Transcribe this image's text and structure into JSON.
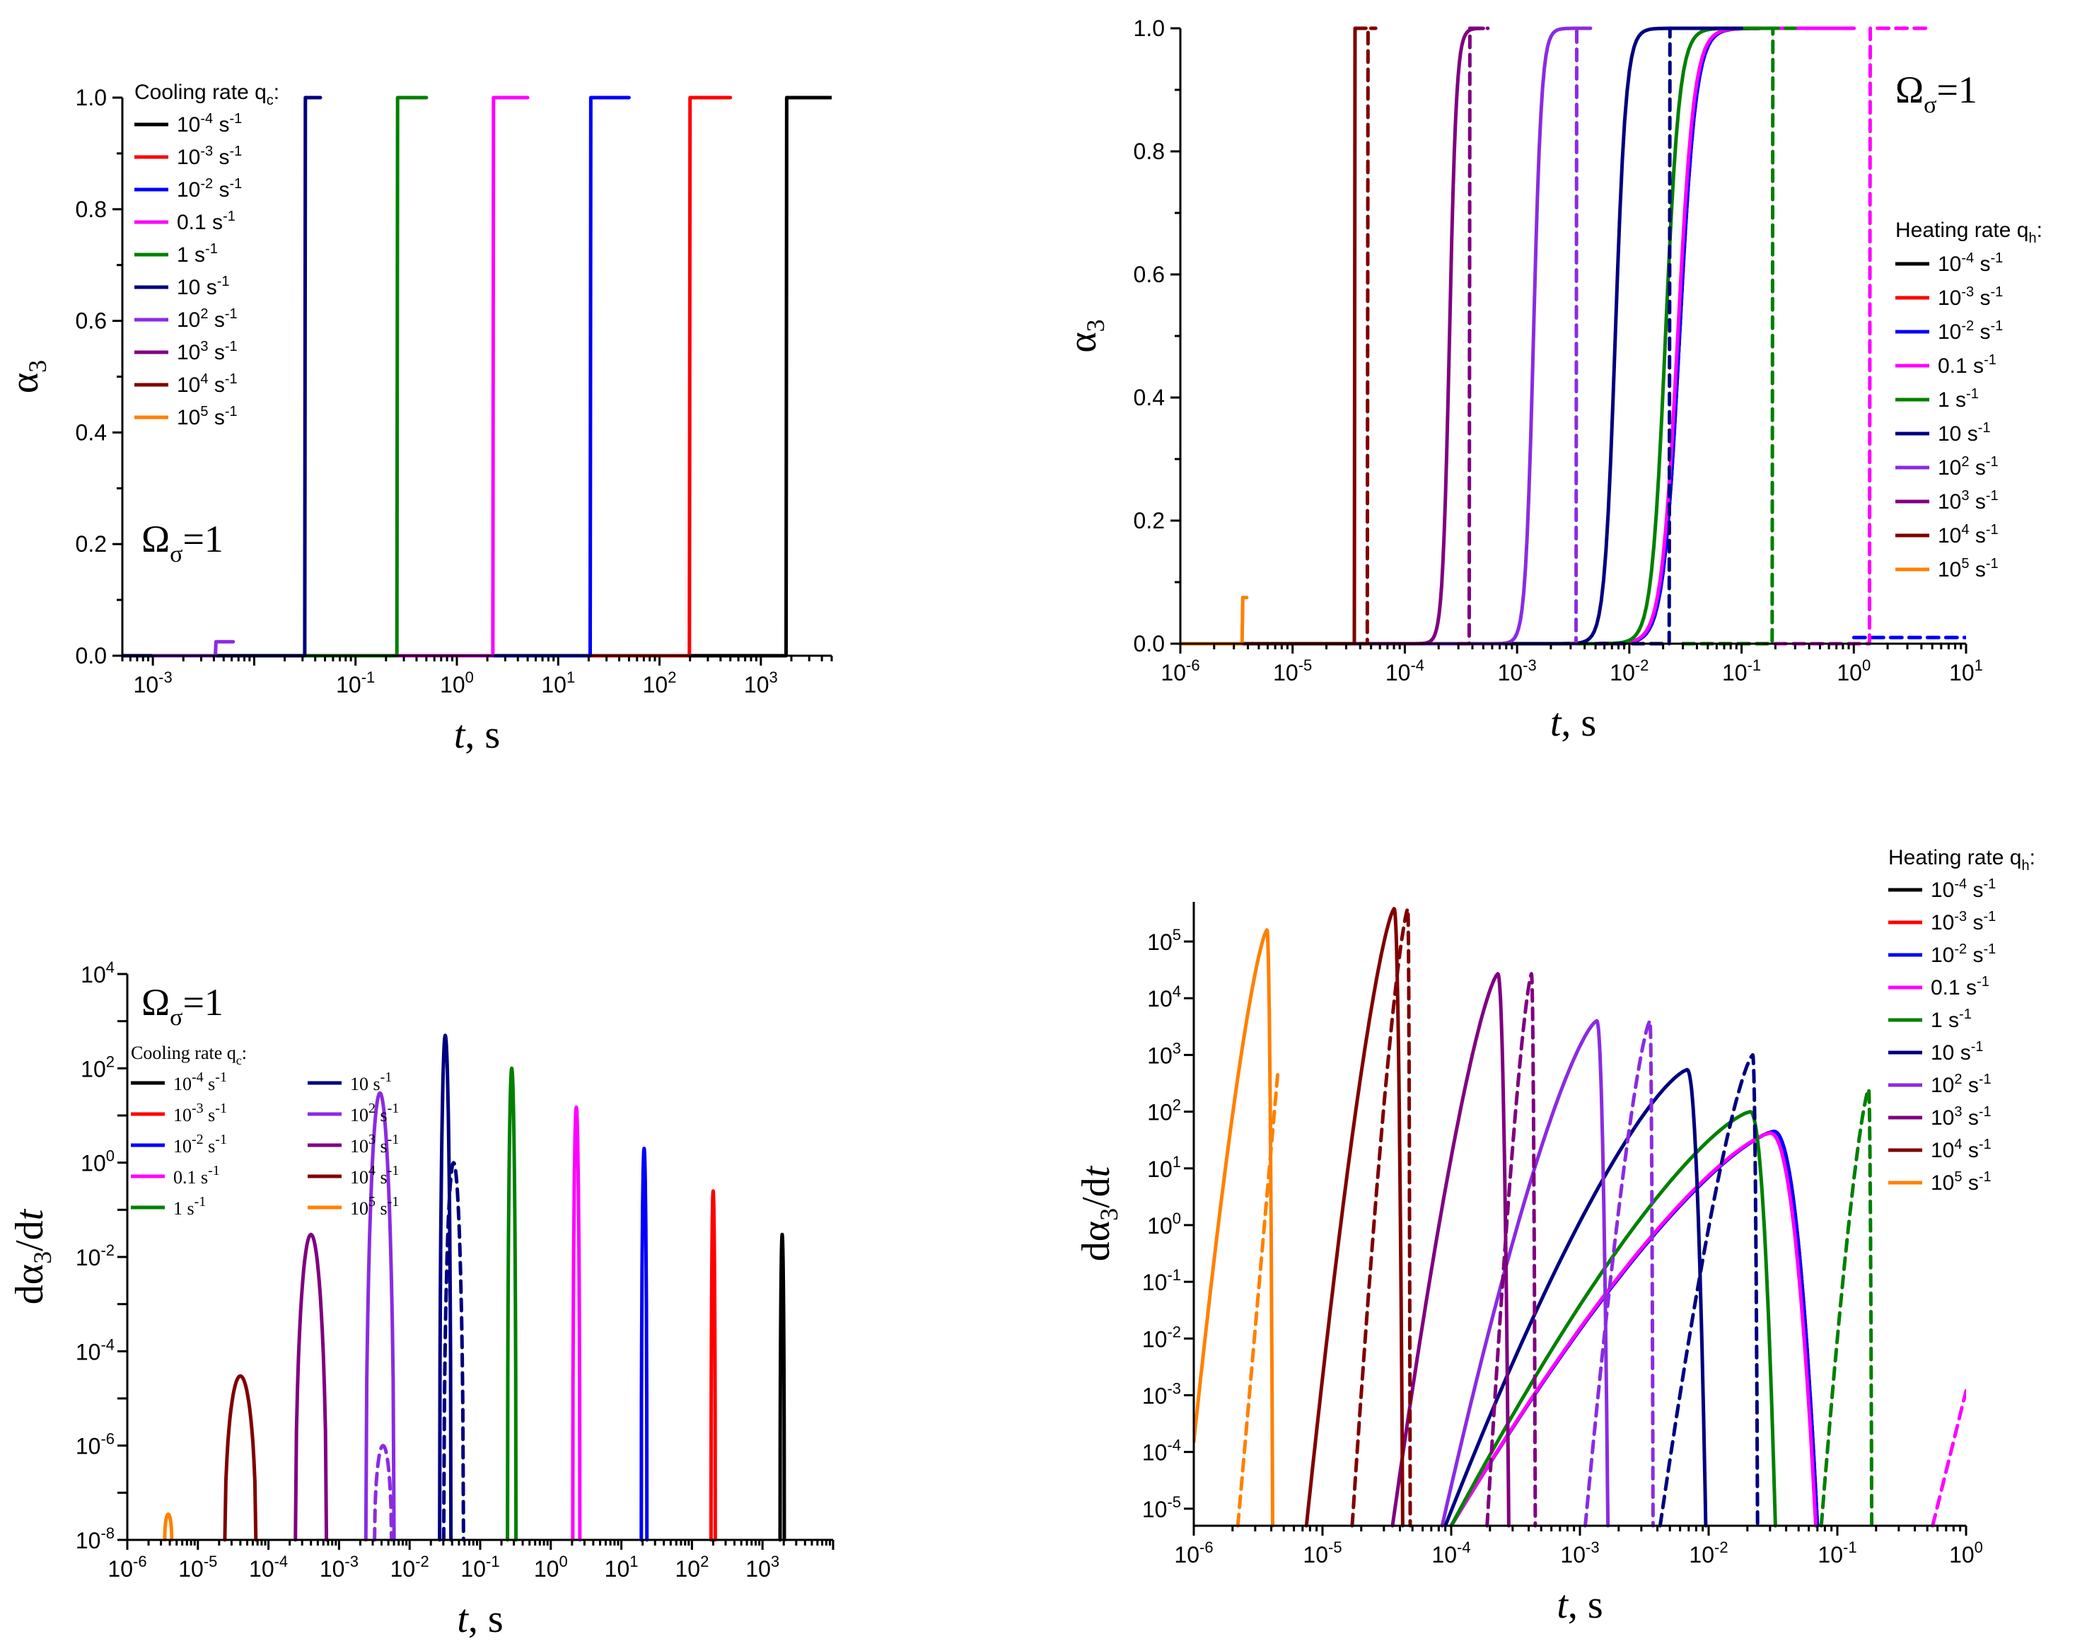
{
  "colors": {
    "1e-4": "#000000",
    "1e-3": "#ff0000",
    "1e-2": "#0000ff",
    "0.1": "#ff00ff",
    "1": "#008000",
    "10": "#000080",
    "1e2": "#8a2be2",
    "1e3": "#800080",
    "1e4": "#800000",
    "1e5": "#ff8000"
  },
  "rate_labels": [
    {
      "key": "1e-4",
      "base": "10",
      "exp": "-4",
      "unit": " s",
      "uexp": "-1"
    },
    {
      "key": "1e-3",
      "base": "10",
      "exp": "-3",
      "unit": " s",
      "uexp": "-1"
    },
    {
      "key": "1e-2",
      "base": "10",
      "exp": "-2",
      "unit": " s",
      "uexp": "-1"
    },
    {
      "key": "0.1",
      "base": "0.1",
      "exp": "",
      "unit": " s",
      "uexp": "-1"
    },
    {
      "key": "1",
      "base": "1",
      "exp": "",
      "unit": " s",
      "uexp": "-1"
    },
    {
      "key": "10",
      "base": "10",
      "exp": "",
      "unit": " s",
      "uexp": "-1"
    },
    {
      "key": "1e2",
      "base": "10",
      "exp": "2",
      "unit": " s",
      "uexp": "-1"
    },
    {
      "key": "1e3",
      "base": "10",
      "exp": "3",
      "unit": " s",
      "uexp": "-1"
    },
    {
      "key": "1e4",
      "base": "10",
      "exp": "4",
      "unit": " s",
      "uexp": "-1"
    },
    {
      "key": "1e5",
      "base": "10",
      "exp": "5",
      "unit": " s",
      "uexp": "-1"
    }
  ],
  "chart_data": [
    {
      "id": "top-left",
      "type": "line",
      "xscale": "log",
      "yscale": "linear",
      "xlim": [
        0.0005,
        5000
      ],
      "ylim": [
        0,
        1.0
      ],
      "xlabel": "t, s",
      "ylabel": "α3",
      "xticks": [
        {
          "v": 0.001,
          "b": "10",
          "e": "-3"
        },
        {
          "v": 0.1,
          "b": "10",
          "e": "-1"
        },
        {
          "v": 1,
          "b": "10",
          "e": "0"
        },
        {
          "v": 10,
          "b": "10",
          "e": "1"
        },
        {
          "v": 100,
          "b": "10",
          "e": "2"
        },
        {
          "v": 1000,
          "b": "10",
          "e": "3"
        }
      ],
      "xticks_unlabeled": [
        0.01
      ],
      "yticks": [
        "0.0",
        "0.2",
        "0.4",
        "0.6",
        "0.8",
        "1.0"
      ],
      "annotation": {
        "text": "Ω",
        "sub": "σ",
        "rest": "=1"
      },
      "legend": {
        "title": "Cooling rate q",
        "title_sub": "c",
        "title_end": ":",
        "position": "top-left"
      },
      "series": [
        {
          "key": "1e-4",
          "solid": {
            "kind": "step",
            "x0": 0.0005,
            "xs": 1800,
            "x1": 5000,
            "hi": 1
          }
        },
        {
          "key": "1e-3",
          "solid": {
            "kind": "step",
            "x0": 0.04,
            "xs": 200,
            "x1": 500,
            "hi": 1
          }
        },
        {
          "key": "1e-2",
          "solid": {
            "kind": "step",
            "x0": 0.02,
            "xs": 21,
            "x1": 50,
            "hi": 1
          }
        },
        {
          "key": "0.1",
          "solid": {
            "kind": "step",
            "x0": 0.2,
            "xs": 2.3,
            "x1": 5,
            "hi": 1
          }
        },
        {
          "key": "1",
          "solid": {
            "kind": "step",
            "x0": 0.0005,
            "xs": 0.26,
            "x1": 0.5,
            "hi": 1
          }
        },
        {
          "key": "10",
          "solid": {
            "kind": "step",
            "x0": 0.0005,
            "xs": 0.032,
            "x1": 0.045,
            "hi": 1
          }
        },
        {
          "key": "1e2",
          "solid": {
            "kind": "step",
            "x0": 0.001,
            "xs": 0.0042,
            "x1": 0.0062,
            "hi": 0.025
          }
        }
      ]
    },
    {
      "id": "top-right",
      "type": "line",
      "xscale": "log",
      "yscale": "linear",
      "xlim": [
        1e-06,
        10
      ],
      "ylim": [
        0,
        1.0
      ],
      "xlabel": "t, s",
      "ylabel": "α3",
      "xticks": [
        {
          "v": 1e-06,
          "b": "10",
          "e": "-6"
        },
        {
          "v": 1e-05,
          "b": "10",
          "e": "-5"
        },
        {
          "v": 0.0001,
          "b": "10",
          "e": "-4"
        },
        {
          "v": 0.001,
          "b": "10",
          "e": "-3"
        },
        {
          "v": 0.01,
          "b": "10",
          "e": "-2"
        },
        {
          "v": 0.1,
          "b": "10",
          "e": "-1"
        },
        {
          "v": 1,
          "b": "10",
          "e": "0"
        },
        {
          "v": 10,
          "b": "10",
          "e": "1"
        }
      ],
      "yticks": [
        "0.0",
        "0.2",
        "0.4",
        "0.6",
        "0.8",
        "1.0"
      ],
      "annotation": {
        "text": "Ω",
        "sub": "σ",
        "rest": "=1"
      },
      "legend": {
        "title": "Heating rate q",
        "title_sub": "h",
        "title_end": ":",
        "position": "right"
      },
      "series": [
        {
          "key": "1e-4",
          "solid": {
            "kind": "sig",
            "xm": 0.028,
            "k": 6,
            "x1": 1
          }
        },
        {
          "key": "1e-3",
          "solid": {
            "kind": "sig",
            "xm": 0.028,
            "k": 6,
            "x1": 1
          },
          "dash": {
            "kind": "const",
            "x0": 0.1,
            "x1": 1,
            "v": 1
          }
        },
        {
          "key": "1e-2",
          "solid": {
            "kind": "sig",
            "xm": 0.028,
            "k": 6,
            "x1": 1
          },
          "dash": {
            "kind": "const",
            "x0": 1,
            "x1": 10,
            "v": 0.01
          }
        },
        {
          "key": "0.1",
          "solid": {
            "kind": "sig",
            "xm": 0.027,
            "k": 6,
            "x1": 1
          },
          "dash": {
            "kind": "step",
            "x0": 0.03,
            "xs": 1.4,
            "x1": 5,
            "hi": 1
          }
        },
        {
          "key": "1",
          "solid": {
            "kind": "sig",
            "xm": 0.021,
            "k": 7,
            "x1": 0.2
          },
          "dash": {
            "kind": "step",
            "x0": 0.03,
            "xs": 0.19,
            "x1": 0.3,
            "hi": 1
          }
        },
        {
          "key": "10",
          "solid": {
            "kind": "sig",
            "xm": 0.0075,
            "k": 9,
            "x1": 0.1
          },
          "dash": {
            "kind": "step",
            "x0": 0.005,
            "xs": 0.023,
            "x1": 0.03,
            "hi": 1
          }
        },
        {
          "key": "1e2",
          "solid": {
            "kind": "sig",
            "xm": 0.0014,
            "k": 12,
            "x1": 0.0045
          },
          "dash": {
            "kind": "step",
            "x0": 0.003,
            "xs": 0.0034,
            "x1": 0.0045,
            "hi": 1
          }
        },
        {
          "key": "1e3",
          "solid": {
            "kind": "sig",
            "xm": 0.00025,
            "k": 14,
            "x1": 0.0005
          },
          "dash": {
            "kind": "step",
            "x0": 0.0003,
            "xs": 0.00038,
            "x1": 0.00055,
            "hi": 1
          }
        },
        {
          "key": "1e4",
          "solid": {
            "kind": "step",
            "x0": 1e-06,
            "xs": 3.6e-05,
            "x1": 4.5e-05,
            "hi": 1
          },
          "dash": {
            "kind": "step",
            "x0": 4e-05,
            "xs": 4.7e-05,
            "x1": 5.5e-05,
            "hi": 1
          }
        },
        {
          "key": "1e5",
          "solid": {
            "kind": "step",
            "x0": 1e-06,
            "xs": 3.6e-06,
            "x1": 3.9e-06,
            "hi": 0.075
          }
        }
      ]
    },
    {
      "id": "bottom-left",
      "type": "line",
      "xscale": "log",
      "yscale": "log",
      "xlim": [
        1e-06,
        10000
      ],
      "ylim": [
        1e-08,
        10000.0
      ],
      "xlabel": "t, s",
      "ylabel": "dα3/dt",
      "xticks": [
        {
          "v": 1e-06,
          "b": "10",
          "e": "-6"
        },
        {
          "v": 1e-05,
          "b": "10",
          "e": "-5"
        },
        {
          "v": 0.0001,
          "b": "10",
          "e": "-4"
        },
        {
          "v": 0.001,
          "b": "10",
          "e": "-3"
        },
        {
          "v": 0.01,
          "b": "10",
          "e": "-2"
        },
        {
          "v": 0.1,
          "b": "10",
          "e": "-1"
        },
        {
          "v": 1,
          "b": "10",
          "e": "0"
        },
        {
          "v": 10,
          "b": "10",
          "e": "1"
        },
        {
          "v": 100,
          "b": "10",
          "e": "2"
        },
        {
          "v": 1000,
          "b": "10",
          "e": "3"
        }
      ],
      "yticks": [
        {
          "v": 1e-08,
          "b": "10",
          "e": "-8"
        },
        {
          "v": 1e-06,
          "b": "10",
          "e": "-6"
        },
        {
          "v": 0.0001,
          "b": "10",
          "e": "-4"
        },
        {
          "v": 0.01,
          "b": "10",
          "e": "-2"
        },
        {
          "v": 1,
          "b": "10",
          "e": "0"
        },
        {
          "v": 100,
          "b": "10",
          "e": "2"
        },
        {
          "v": 10000,
          "b": "10",
          "e": "4"
        }
      ],
      "annotation": {
        "text": "Ω",
        "sub": "σ",
        "rest": "=1"
      },
      "legend": {
        "title": "Cooling rate q",
        "title_sub": "c",
        "title_end": ":",
        "position": "top-left",
        "columns": 2
      },
      "series": [
        {
          "key": "1e-4",
          "solid": {
            "kind": "spike",
            "xc": 1900,
            "w": 0.03,
            "peak": 0.03
          }
        },
        {
          "key": "1e-3",
          "solid": {
            "kind": "spike",
            "xc": 200,
            "w": 0.03,
            "peak": 0.25
          }
        },
        {
          "key": "1e-2",
          "solid": {
            "kind": "spike",
            "xc": 21,
            "w": 0.04,
            "peak": 2
          }
        },
        {
          "key": "0.1",
          "solid": {
            "kind": "spike",
            "xc": 2.3,
            "w": 0.05,
            "peak": 15
          }
        },
        {
          "key": "1",
          "solid": {
            "kind": "spike",
            "xc": 0.28,
            "w": 0.06,
            "peak": 100
          }
        },
        {
          "key": "10",
          "solid": {
            "kind": "spike",
            "xc": 0.032,
            "w": 0.08,
            "peak": 500
          },
          "dash": {
            "kind": "spike",
            "xc": 0.042,
            "w": 0.14,
            "peak": 1
          }
        },
        {
          "key": "1e2",
          "solid": {
            "kind": "spike",
            "xc": 0.0038,
            "w": 0.2,
            "peak": 30
          },
          "dash": {
            "kind": "spike",
            "xc": 0.0042,
            "w": 0.12,
            "peak": 1e-06
          }
        },
        {
          "key": "1e3",
          "solid": {
            "kind": "spike",
            "xc": 0.0004,
            "w": 0.22,
            "peak": 0.03
          }
        },
        {
          "key": "1e4",
          "solid": {
            "kind": "spike",
            "xc": 4e-05,
            "w": 0.22,
            "peak": 3e-05
          }
        },
        {
          "key": "1e5",
          "solid": {
            "kind": "spike",
            "xc": 3.8e-06,
            "w": 0.05,
            "peak": 3.5e-08
          }
        }
      ]
    },
    {
      "id": "bottom-right",
      "type": "line",
      "xscale": "log",
      "yscale": "log",
      "xlim": [
        1e-06,
        1
      ],
      "ylim": [
        5e-06,
        500000.0
      ],
      "xlabel": "t, s",
      "ylabel": "dα3/dt",
      "xticks": [
        {
          "v": 1e-06,
          "b": "10",
          "e": "-6"
        },
        {
          "v": 1e-05,
          "b": "10",
          "e": "-5"
        },
        {
          "v": 0.0001,
          "b": "10",
          "e": "-4"
        },
        {
          "v": 0.001,
          "b": "10",
          "e": "-3"
        },
        {
          "v": 0.01,
          "b": "10",
          "e": "-2"
        },
        {
          "v": 0.1,
          "b": "10",
          "e": "-1"
        },
        {
          "v": 1,
          "b": "10",
          "e": "0"
        }
      ],
      "yticks": [
        {
          "v": 1e-05,
          "b": "10",
          "e": "-5"
        },
        {
          "v": 0.0001,
          "b": "10",
          "e": "-4"
        },
        {
          "v": 0.001,
          "b": "10",
          "e": "-3"
        },
        {
          "v": 0.01,
          "b": "10",
          "e": "-2"
        },
        {
          "v": 0.1,
          "b": "10",
          "e": "-1"
        },
        {
          "v": 1,
          "b": "10",
          "e": "0"
        },
        {
          "v": 10,
          "b": "10",
          "e": "1"
        },
        {
          "v": 100,
          "b": "10",
          "e": "2"
        },
        {
          "v": 1000,
          "b": "10",
          "e": "3"
        },
        {
          "v": 10000,
          "b": "10",
          "e": "4"
        },
        {
          "v": 100000,
          "b": "10",
          "e": "5"
        }
      ],
      "legend": {
        "title": "Heating rate q",
        "title_sub": "h",
        "title_end": ":",
        "position": "top-right"
      },
      "series": [
        {
          "key": "1e-4",
          "solid": {
            "kind": "peak",
            "x0": 0.0001,
            "y0": 5e-06,
            "xp": 0.032,
            "yp": 45,
            "x1": 0.07
          }
        },
        {
          "key": "1e-3",
          "solid": {
            "kind": "peak",
            "x0": 0.0001,
            "y0": 5e-06,
            "xp": 0.032,
            "yp": 45,
            "x1": 0.07
          }
        },
        {
          "key": "1e-2",
          "solid": {
            "kind": "peak",
            "x0": 0.0001,
            "y0": 5e-06,
            "xp": 0.032,
            "yp": 45,
            "x1": 0.07
          }
        },
        {
          "key": "0.1",
          "solid": {
            "kind": "peak",
            "x0": 0.0001,
            "y0": 5e-06,
            "xp": 0.03,
            "yp": 42,
            "x1": 0.068
          },
          "dash": {
            "kind": "line",
            "x0": 0.55,
            "y0": 5e-06,
            "x1": 1,
            "y1": 0.0012
          }
        },
        {
          "key": "1",
          "solid": {
            "kind": "peak",
            "x0": 0.0001,
            "y0": 5e-06,
            "xp": 0.021,
            "yp": 100,
            "x1": 0.033
          },
          "dash": {
            "kind": "peak",
            "x0": 0.075,
            "y0": 5e-06,
            "xp": 0.175,
            "yp": 250,
            "x1": 0.185
          }
        },
        {
          "key": "10",
          "solid": {
            "kind": "peak",
            "x0": 9e-05,
            "y0": 5e-06,
            "xp": 0.0068,
            "yp": 550,
            "x1": 0.0095
          },
          "dash": {
            "kind": "peak",
            "x0": 0.0042,
            "y0": 5e-06,
            "xp": 0.022,
            "yp": 1000,
            "x1": 0.024
          }
        },
        {
          "key": "1e2",
          "solid": {
            "kind": "peak",
            "x0": 8.5e-05,
            "y0": 5e-06,
            "xp": 0.00135,
            "yp": 4000,
            "x1": 0.00165
          },
          "dash": {
            "kind": "peak",
            "x0": 0.0011,
            "y0": 5e-06,
            "xp": 0.0035,
            "yp": 4000,
            "x1": 0.0037
          }
        },
        {
          "key": "1e3",
          "solid": {
            "kind": "peak",
            "x0": 3.5e-05,
            "y0": 5e-06,
            "xp": 0.00023,
            "yp": 27000,
            "x1": 0.00028
          },
          "dash": {
            "kind": "peak",
            "x0": 0.00019,
            "y0": 5e-06,
            "xp": 0.00042,
            "yp": 27000,
            "x1": 0.00045
          }
        },
        {
          "key": "1e4",
          "solid": {
            "kind": "peak",
            "x0": 7.5e-06,
            "y0": 5e-06,
            "xp": 3.6e-05,
            "yp": 380000,
            "x1": 4.2e-05
          },
          "dash": {
            "kind": "peak",
            "x0": 1.7e-05,
            "y0": 5e-06,
            "xp": 4.6e-05,
            "yp": 380000,
            "x1": 4.8e-05
          }
        },
        {
          "key": "1e5",
          "solid": {
            "kind": "peak",
            "x0": 1e-06,
            "y0": 0.00015,
            "xp": 3.7e-06,
            "yp": 160000,
            "x1": 4.1e-06
          },
          "dash": {
            "kind": "line",
            "x0": 2.2e-06,
            "y0": 5e-06,
            "x1": 4.5e-06,
            "y1": 500
          }
        }
      ]
    }
  ]
}
